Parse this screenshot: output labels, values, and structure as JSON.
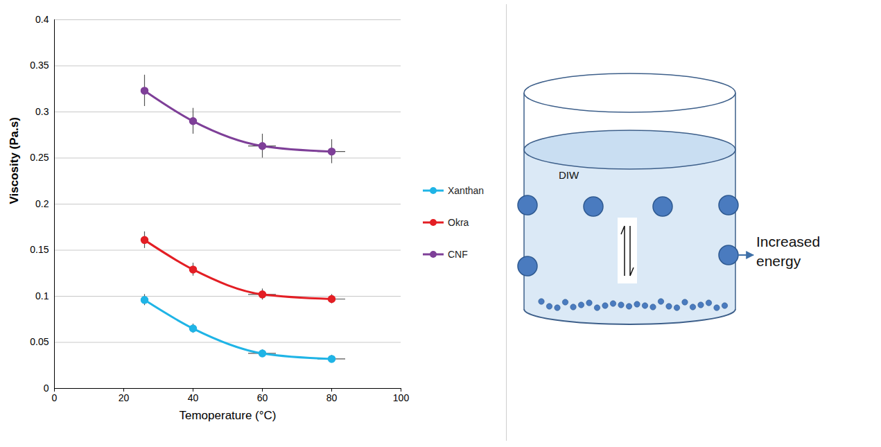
{
  "chart_data": {
    "type": "line",
    "x_label": "Temoperature (°C)",
    "y_label": "Viscosity (Pa.s)",
    "x": [
      26,
      40,
      60,
      80
    ],
    "xlim": [
      0,
      100
    ],
    "xticks": [
      0,
      20,
      40,
      60,
      80,
      100
    ],
    "ylim": [
      0,
      0.4
    ],
    "yticks": [
      0,
      0.05,
      0.1,
      0.15,
      0.2,
      0.25,
      0.3,
      0.35,
      0.4
    ],
    "grid": true,
    "legend": "right",
    "marker": "circle",
    "series": [
      {
        "name": "Xanthan",
        "color": "#1fb4e6",
        "values": [
          0.096,
          0.065,
          0.038,
          0.032
        ],
        "y_errors": [
          0.006,
          0.005,
          0.004,
          0.004
        ],
        "x_errors": [
          0,
          0,
          4,
          4
        ]
      },
      {
        "name": "Okra",
        "color": "#e31e24",
        "values": [
          0.161,
          0.129,
          0.102,
          0.097
        ],
        "y_errors": [
          0.009,
          0.007,
          0.006,
          0.005
        ],
        "x_errors": [
          0,
          0,
          4,
          4
        ]
      },
      {
        "name": "CNF",
        "color": "#7e3f98",
        "values": [
          0.323,
          0.29,
          0.263,
          0.257
        ],
        "y_errors": [
          0.017,
          0.014,
          0.013,
          0.013
        ],
        "x_errors": [
          0,
          0,
          4,
          4
        ]
      }
    ]
  },
  "diagram": {
    "label": "DIW",
    "annotation": "Increased energy"
  }
}
